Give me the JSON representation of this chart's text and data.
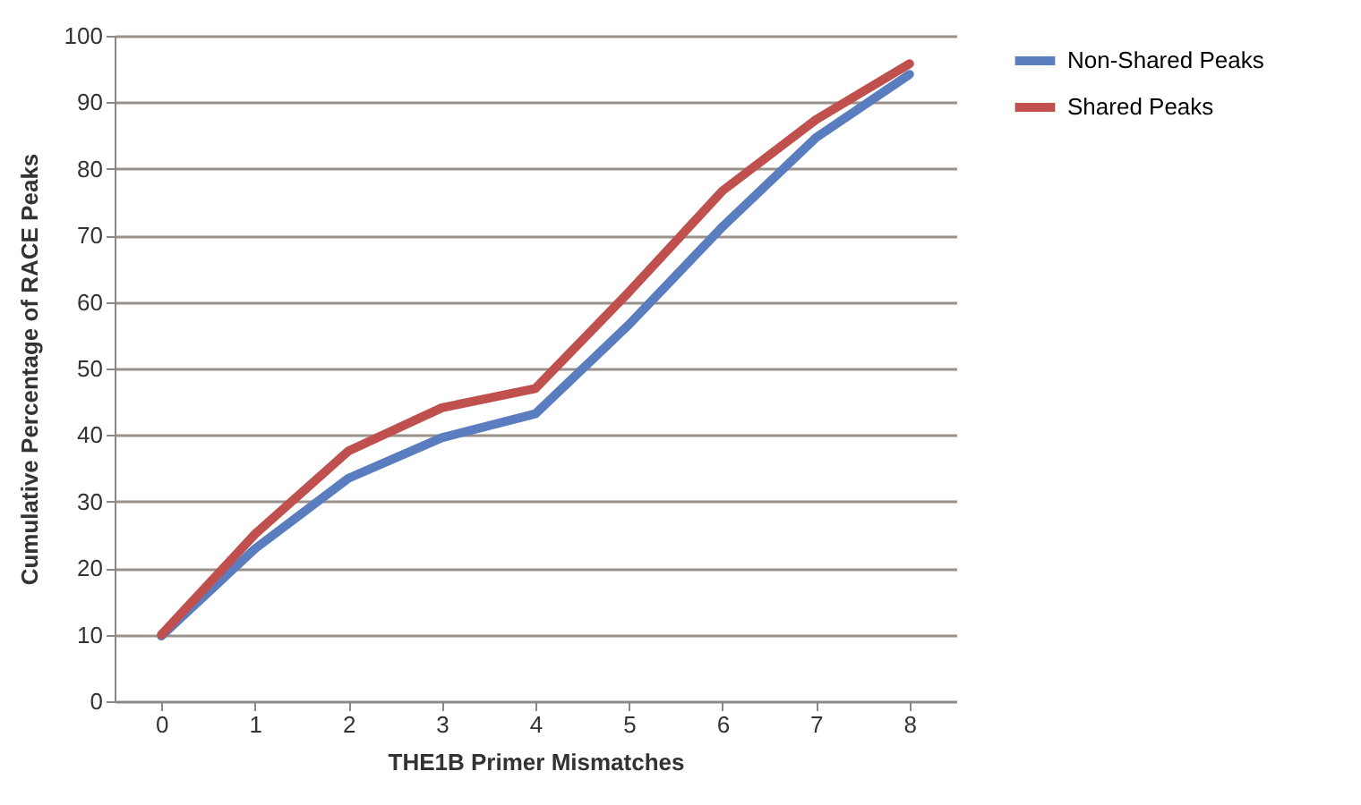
{
  "chart_data": {
    "type": "line",
    "xlabel": "THE1B Primer Mismatches",
    "ylabel": "Cumulative Percentage of RACE Peaks",
    "categories": [
      "0",
      "1",
      "2",
      "3",
      "4",
      "5",
      "6",
      "7",
      "8"
    ],
    "series": [
      {
        "name": "Non-Shared Peaks",
        "color": "#5a7dbf",
        "values": [
          9.8,
          22.9,
          33.5,
          39.6,
          43.2,
          56.6,
          71.3,
          84.7,
          94.2
        ]
      },
      {
        "name": "Shared Peaks",
        "color": "#c0504d",
        "values": [
          10,
          25.1,
          37.6,
          44.1,
          47,
          61.5,
          76.7,
          87.4,
          95.8
        ]
      }
    ],
    "ylim": [
      0,
      100
    ],
    "yticks": [
      0,
      10,
      20,
      30,
      40,
      50,
      60,
      70,
      80,
      90,
      100
    ],
    "grid": "y",
    "legend": "right",
    "marker": "none",
    "line_style": "solid"
  }
}
